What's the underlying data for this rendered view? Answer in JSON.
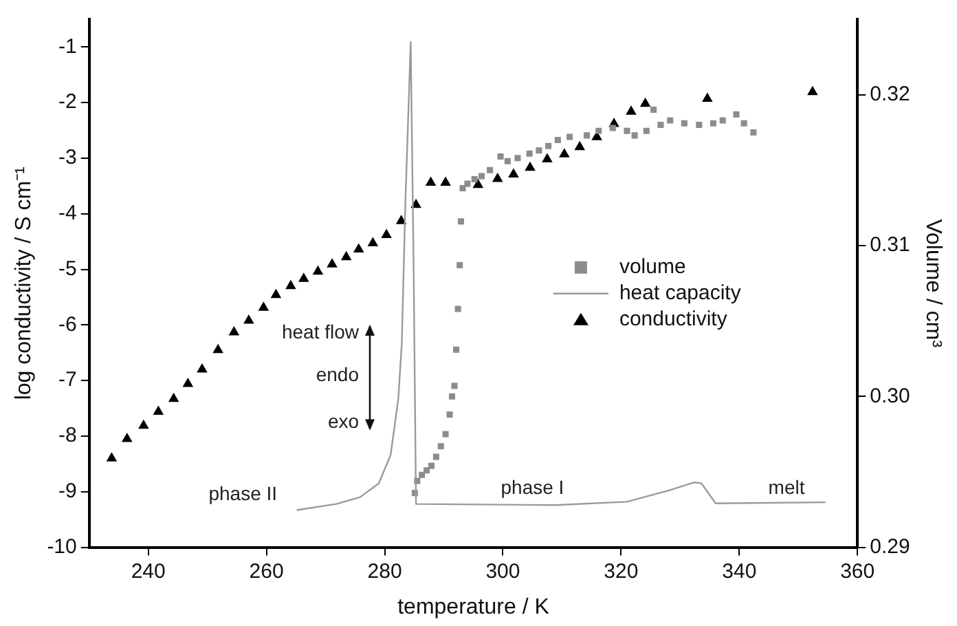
{
  "chart_data": {
    "type": "scatter",
    "xlabel": "temperature / K",
    "ylabel": "log conductivity / S cm⁻¹",
    "y2label": "Volume / cm³",
    "xlim": [
      230,
      360
    ],
    "xticks": [
      240,
      260,
      280,
      300,
      320,
      340,
      360
    ],
    "ylim": [
      -10,
      -0.5
    ],
    "yticks": [
      -10,
      -9,
      -8,
      -7,
      -6,
      -5,
      -4,
      -3,
      -2,
      -1
    ],
    "y2lim": [
      0.29,
      0.325
    ],
    "y2ticks": [
      {
        "value": 0.29,
        "label": "0.29"
      },
      {
        "value": 0.3,
        "label": "0.30"
      },
      {
        "value": 0.31,
        "label": "0.31"
      },
      {
        "value": 0.32,
        "label": "0.32"
      }
    ],
    "grid": false,
    "legend": "right",
    "series": [
      {
        "name": "volume",
        "axis": "y2",
        "marker": "square",
        "color": "#8c8c8c",
        "x": [
          285.1,
          285.5,
          286.3,
          287.1,
          287.9,
          288.7,
          289.5,
          290.3,
          291.0,
          291.4,
          291.8,
          292.1,
          292.4,
          292.7,
          292.9,
          293.2,
          294.0,
          295.2,
          296.4,
          297.8,
          299.6,
          300.8,
          302.5,
          304.5,
          306.1,
          307.7,
          309.3,
          311.3,
          314.2,
          316.2,
          318.6,
          321.0,
          322.3,
          324.3,
          325.5,
          326.7,
          328.3,
          330.7,
          333.2,
          335.6,
          337.2,
          339.5,
          340.8,
          342.4
        ],
        "values": [
          0.2936,
          0.2944,
          0.2948,
          0.2951,
          0.2954,
          0.296,
          0.2967,
          0.2975,
          0.2988,
          0.3,
          0.3007,
          0.3031,
          0.3058,
          0.3087,
          0.3116,
          0.3138,
          0.3141,
          0.3144,
          0.3146,
          0.315,
          0.3159,
          0.3156,
          0.3158,
          0.3161,
          0.3163,
          0.3166,
          0.317,
          0.3172,
          0.3173,
          0.3176,
          0.3178,
          0.3176,
          0.3173,
          0.3176,
          0.319,
          0.318,
          0.3183,
          0.3181,
          0.318,
          0.3181,
          0.3183,
          0.3187,
          0.3181,
          0.3175
        ]
      },
      {
        "name": "heat capacity",
        "type": "line",
        "marker": "none",
        "line_style": "solid",
        "color": "#9a9a9a",
        "x": [
          265.1,
          271.8,
          275.8,
          279.0,
          281.0,
          282.3,
          282.9,
          283.5,
          284.4,
          284.9,
          285.3,
          308.9,
          321.0,
          328.3,
          332.4,
          333.6,
          336.0,
          354.6
        ],
        "values": [
          -9.33,
          -9.22,
          -9.1,
          -8.85,
          -8.34,
          -7.33,
          -6.32,
          -3.8,
          -0.91,
          -5.0,
          -9.22,
          -9.24,
          -9.18,
          -8.97,
          -8.83,
          -8.85,
          -9.21,
          -9.19
        ]
      },
      {
        "name": "conductivity",
        "marker": "triangle",
        "color": "#000000",
        "x": [
          233.8,
          236.4,
          239.2,
          241.7,
          244.3,
          246.7,
          249.1,
          251.8,
          254.5,
          257.0,
          259.5,
          261.6,
          264.1,
          266.3,
          268.7,
          271.1,
          273.5,
          275.6,
          278.0,
          280.3,
          282.8,
          285.3,
          287.8,
          290.3,
          295.8,
          299.1,
          301.8,
          304.6,
          307.5,
          310.4,
          313.0,
          315.9,
          318.8,
          321.7,
          324.1,
          334.6,
          352.4
        ],
        "values": [
          -8.4,
          -8.05,
          -7.81,
          -7.56,
          -7.33,
          -7.06,
          -6.8,
          -6.45,
          -6.13,
          -5.92,
          -5.69,
          -5.46,
          -5.3,
          -5.17,
          -5.04,
          -4.91,
          -4.78,
          -4.64,
          -4.53,
          -4.38,
          -4.13,
          -3.84,
          -3.44,
          -3.44,
          -3.48,
          -3.37,
          -3.29,
          -3.17,
          -3.02,
          -2.93,
          -2.8,
          -2.62,
          -2.38,
          -2.16,
          -2.02,
          -1.93,
          -1.81
        ]
      }
    ],
    "annotations": [
      "phase II",
      "phase I",
      "melt",
      "heat flow",
      "endo",
      "exo"
    ]
  }
}
